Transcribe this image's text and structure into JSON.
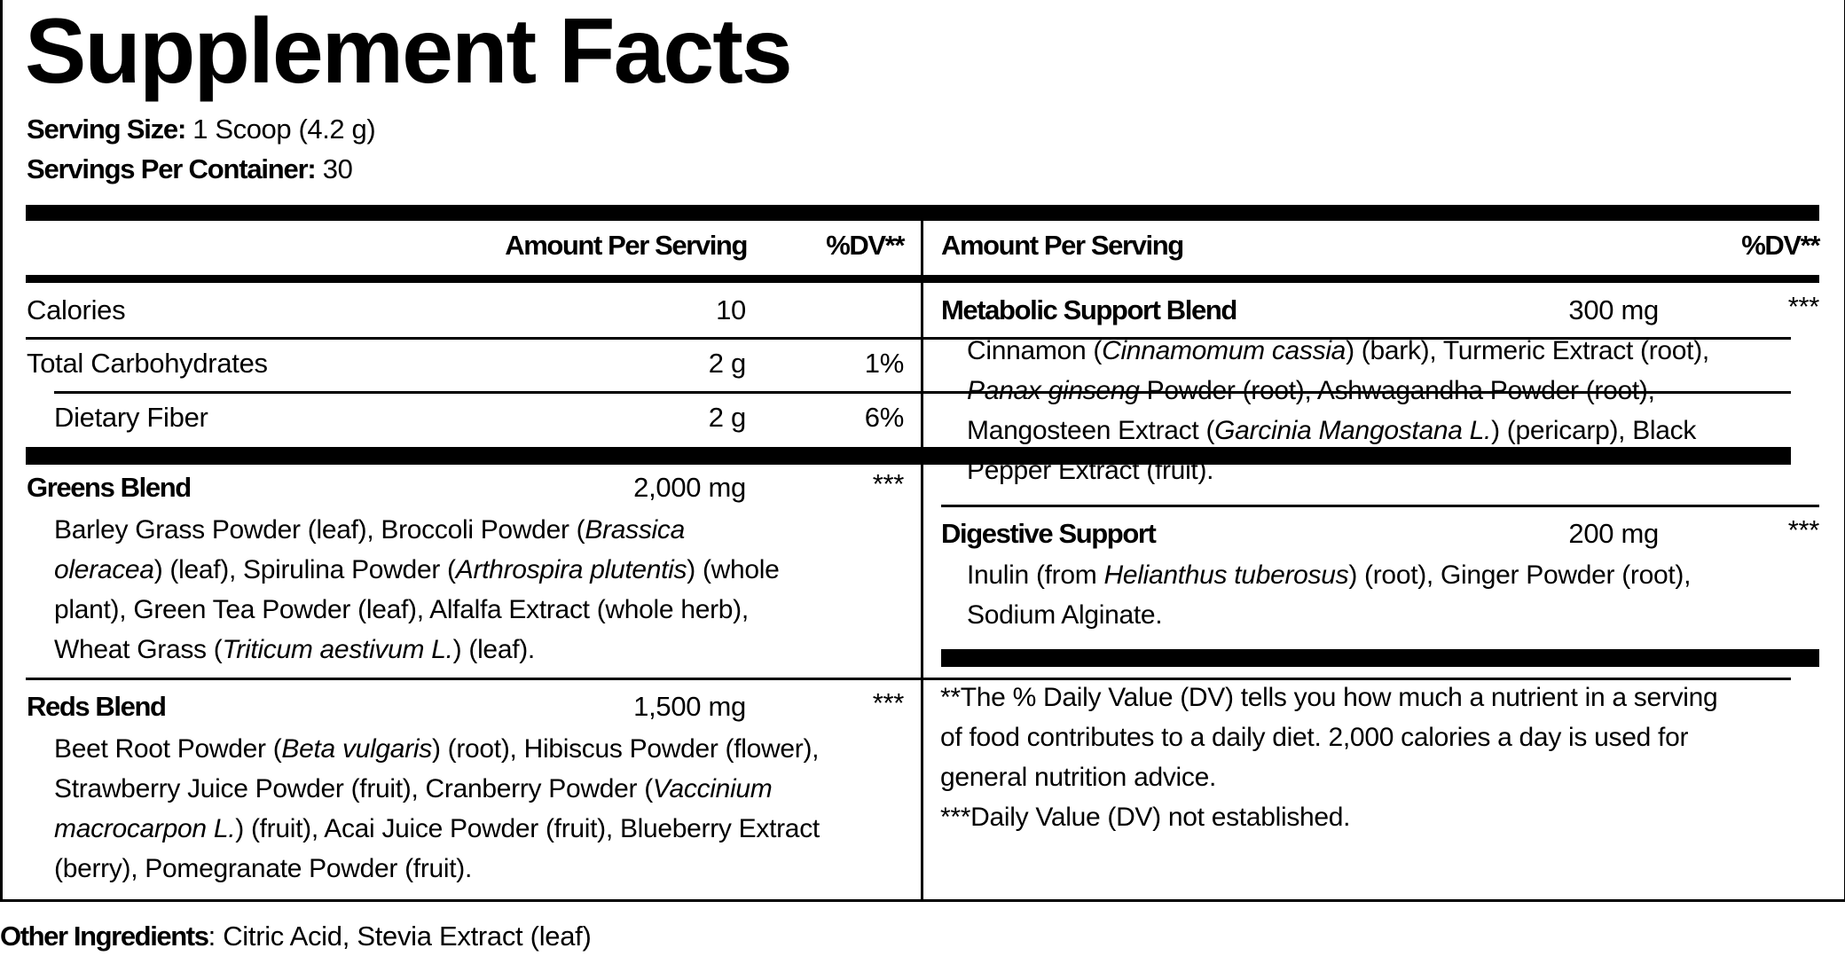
{
  "title": "Supplement Facts",
  "serving": {
    "size_label": "Serving Size:",
    "size_value": " 1 Scoop (4.2 g)",
    "per_container_label": "Servings Per Container:",
    "per_container_value": " 30"
  },
  "left": {
    "header": {
      "amount": "Amount Per Serving",
      "dv": "%DV**"
    },
    "nutrients": [
      {
        "name": "Calories",
        "amount": "10",
        "dv": ""
      },
      {
        "name": "Total Carbohydrates",
        "amount": "2 g",
        "dv": "1%"
      },
      {
        "name": "Dietary Fiber",
        "amount": "2 g",
        "dv": "6%"
      }
    ],
    "blends": [
      {
        "name": "Greens Blend",
        "amount": "2,000 mg",
        "dv": "***",
        "lines": [
          [
            {
              "t": "Barley Grass Powder (leaf), Broccoli Powder ("
            },
            {
              "t": "Brassica",
              "i": true
            }
          ],
          [
            {
              "t": "oleracea",
              "i": true
            },
            {
              "t": ") (leaf), Spirulina Powder ("
            },
            {
              "t": "Arthrospira plutentis",
              "i": true
            },
            {
              "t": ") (whole"
            }
          ],
          [
            {
              "t": "plant), Green Tea Powder (leaf), Alfalfa Extract (whole herb),"
            }
          ],
          [
            {
              "t": "Wheat Grass ("
            },
            {
              "t": "Triticum aestivum L.",
              "i": true
            },
            {
              "t": ") (leaf)."
            }
          ]
        ]
      },
      {
        "name": "Reds Blend",
        "amount": "1,500 mg",
        "dv": "***",
        "lines": [
          [
            {
              "t": "Beet Root Powder ("
            },
            {
              "t": "Beta vulgaris",
              "i": true
            },
            {
              "t": ") (root), Hibiscus Powder (flower),"
            }
          ],
          [
            {
              "t": "Strawberry Juice Powder (fruit), Cranberry Powder ("
            },
            {
              "t": "Vaccinium",
              "i": true
            }
          ],
          [
            {
              "t": "macrocarpon L.",
              "i": true
            },
            {
              "t": ") (fruit), Acai Juice Powder (fruit), Blueberry Extract"
            }
          ],
          [
            {
              "t": "(berry), Pomegranate Powder (fruit)."
            }
          ]
        ]
      }
    ]
  },
  "right": {
    "header": {
      "amount": "Amount Per Serving",
      "dv": "%DV**"
    },
    "blends": [
      {
        "name": "Metabolic Support Blend",
        "amount": "300 mg",
        "dv": "***",
        "lines": [
          [
            {
              "t": "Cinnamon ("
            },
            {
              "t": "Cinnamomum cassia",
              "i": true
            },
            {
              "t": ") (bark), Turmeric Extract (root),"
            }
          ],
          [
            {
              "t": "Panax ginseng",
              "i": true
            },
            {
              "t": " Powder (root), Ashwagandha Powder (root),"
            }
          ],
          [
            {
              "t": "Mangosteen Extract ("
            },
            {
              "t": "Garcinia Mangostana L.",
              "i": true
            },
            {
              "t": ") (pericarp), Black"
            }
          ],
          [
            {
              "t": "Pepper Extract (fruit)."
            }
          ]
        ]
      },
      {
        "name": "Digestive Support",
        "amount": "200 mg",
        "dv": "***",
        "lines": [
          [
            {
              "t": "Inulin (from "
            },
            {
              "t": "Helianthus tuberosus",
              "i": true
            },
            {
              "t": ") (root), Ginger Powder (root),"
            }
          ],
          [
            {
              "t": "Sodium Alginate."
            }
          ]
        ]
      }
    ],
    "footnotes": [
      "**The % Daily Value (DV) tells you how much a nutrient in a serving",
      "of food contributes to a daily diet. 2,000 calories a day is used for",
      "general nutrition advice.",
      "***Daily Value (DV) not established."
    ]
  },
  "other_ingredients": {
    "label": "Other Ingredients",
    "value": ": Citric Acid, Stevia Extract (leaf)"
  }
}
